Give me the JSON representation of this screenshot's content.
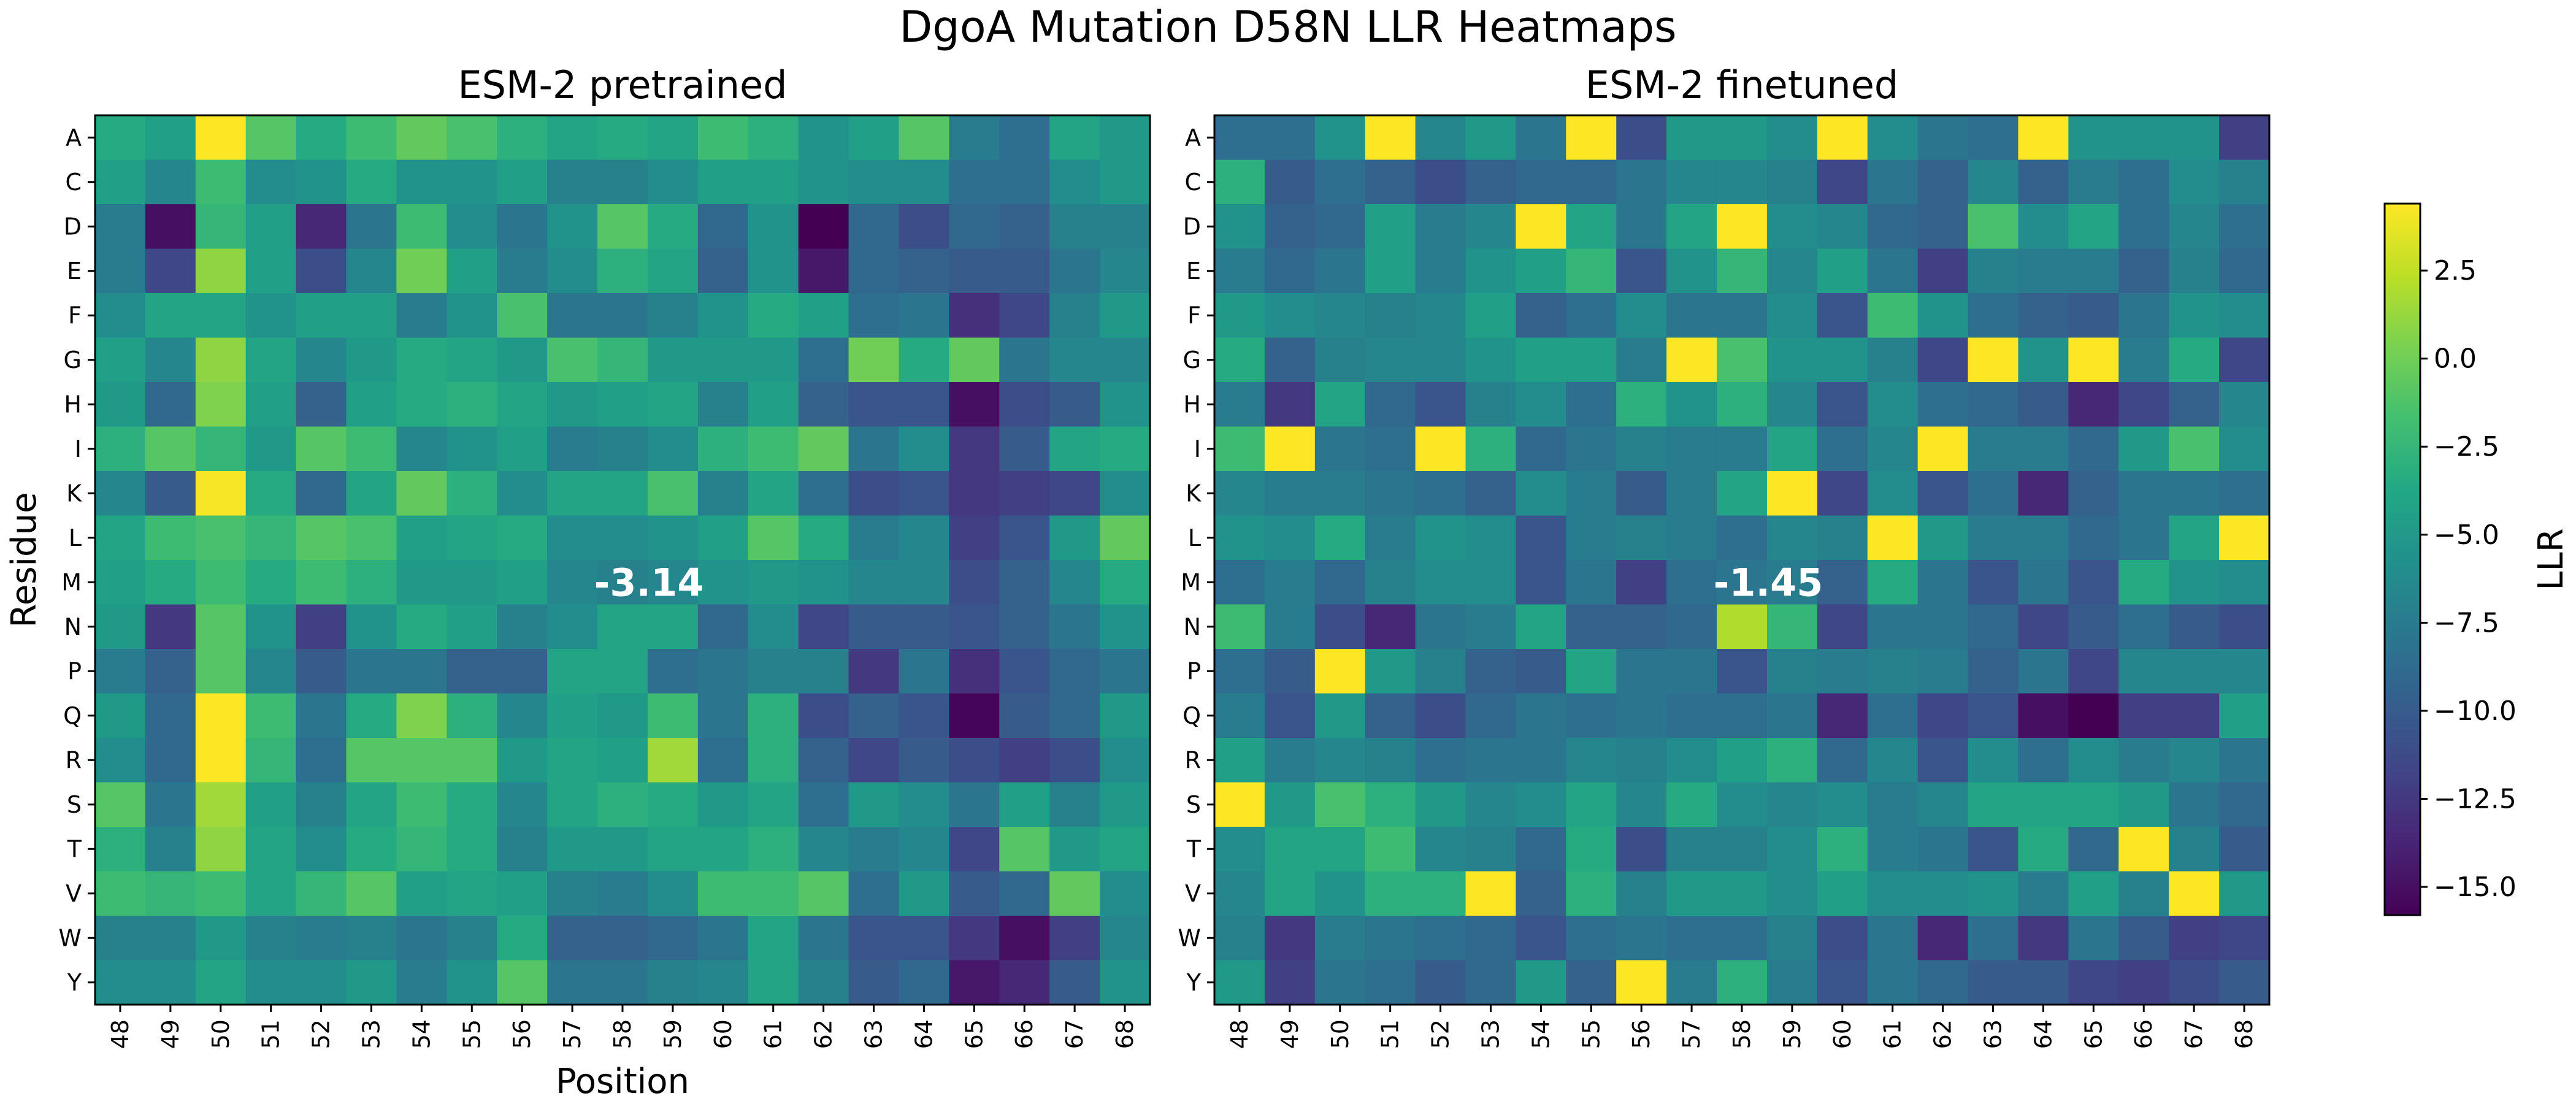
{
  "chart_data": {
    "type": "heatmap",
    "title": "DgoA Mutation D58N LLR Heatmaps",
    "colormap": "viridis",
    "vmin": -15.8,
    "vmax": 4.4,
    "colorbar": {
      "label": "LLR",
      "ticks": [
        2.5,
        0.0,
        -2.5,
        -5.0,
        -7.5,
        -10.0,
        -12.5,
        -15.0
      ],
      "tick_labels": [
        "2.5",
        "0.0",
        "−2.5",
        "−5.0",
        "−7.5",
        "−10.0",
        "−12.5",
        "−15.0"
      ]
    },
    "x_label": "Position",
    "y_label": "Residue",
    "positions": [
      "48",
      "49",
      "50",
      "51",
      "52",
      "53",
      "54",
      "55",
      "56",
      "57",
      "58",
      "59",
      "60",
      "61",
      "62",
      "63",
      "64",
      "65",
      "66",
      "67",
      "68"
    ],
    "residues": [
      "A",
      "C",
      "D",
      "E",
      "F",
      "G",
      "H",
      "I",
      "K",
      "L",
      "M",
      "N",
      "P",
      "Q",
      "R",
      "S",
      "T",
      "V",
      "W",
      "Y"
    ],
    "panels": [
      {
        "title": "ESM-2 pretrained",
        "annotation": "-3.14",
        "values": [
          [
            -3.5,
            -4.5,
            4.4,
            -1.0,
            -3.5,
            -2.0,
            -0.5,
            -1.5,
            -3.0,
            -4.0,
            -3.5,
            -4.0,
            -2.0,
            -3.0,
            -5.5,
            -4.5,
            -1.0,
            -7.5,
            -8.5,
            -4.0,
            -5.0
          ],
          [
            -4.5,
            -6.5,
            -2.0,
            -6.0,
            -5.5,
            -3.5,
            -5.5,
            -5.5,
            -4.5,
            -7.0,
            -7.0,
            -6.0,
            -4.5,
            -4.5,
            -5.5,
            -6.0,
            -6.0,
            -8.5,
            -8.5,
            -6.0,
            -5.0
          ],
          [
            -7.5,
            -15.0,
            -2.5,
            -4.5,
            -13.5,
            -8.0,
            -2.0,
            -6.0,
            -8.0,
            -5.5,
            -1.0,
            -3.5,
            -9.0,
            -5.5,
            -16.0,
            -9.0,
            -11.0,
            -9.0,
            -9.5,
            -7.0,
            -7.0
          ],
          [
            -7.5,
            -11.5,
            1.0,
            -4.5,
            -11.0,
            -6.5,
            0.0,
            -4.5,
            -7.5,
            -6.0,
            -3.0,
            -4.0,
            -9.5,
            -5.5,
            -14.5,
            -9.0,
            -9.5,
            -10.0,
            -10.0,
            -8.0,
            -6.5
          ],
          [
            -6.0,
            -4.0,
            -4.0,
            -5.5,
            -4.5,
            -4.5,
            -7.5,
            -5.5,
            -1.5,
            -8.0,
            -8.0,
            -7.0,
            -5.5,
            -3.5,
            -4.5,
            -8.5,
            -8.0,
            -13.0,
            -11.5,
            -7.0,
            -5.0
          ],
          [
            -4.5,
            -6.5,
            1.0,
            -4.0,
            -6.5,
            -5.0,
            -3.5,
            -4.0,
            -5.0,
            -1.5,
            -2.5,
            -5.0,
            -5.0,
            -5.0,
            -8.5,
            0.0,
            -3.5,
            -0.5,
            -8.0,
            -6.5,
            -6.5
          ],
          [
            -5.0,
            -9.0,
            0.5,
            -4.5,
            -9.5,
            -4.5,
            -3.5,
            -3.0,
            -4.0,
            -5.0,
            -4.5,
            -4.0,
            -7.0,
            -4.5,
            -9.5,
            -10.5,
            -10.5,
            -15.0,
            -11.0,
            -10.0,
            -5.5
          ],
          [
            -3.0,
            -1.0,
            -2.5,
            -5.0,
            -1.0,
            -2.0,
            -6.5,
            -5.5,
            -4.5,
            -7.5,
            -7.0,
            -6.0,
            -3.0,
            -2.0,
            -0.5,
            -8.0,
            -6.0,
            -12.5,
            -10.0,
            -4.0,
            -3.5
          ],
          [
            -6.5,
            -10.0,
            4.2,
            -3.5,
            -9.0,
            -4.0,
            -0.5,
            -3.0,
            -6.0,
            -4.0,
            -4.0,
            -1.5,
            -7.0,
            -4.0,
            -8.5,
            -11.0,
            -10.5,
            -12.5,
            -12.0,
            -11.5,
            -6.0
          ],
          [
            -4.0,
            -2.0,
            -1.5,
            -2.5,
            -1.0,
            -1.5,
            -4.5,
            -4.0,
            -3.5,
            -6.0,
            -6.0,
            -5.5,
            -4.5,
            -1.0,
            -3.5,
            -7.5,
            -6.5,
            -12.0,
            -10.5,
            -5.0,
            -0.5
          ],
          [
            -4.5,
            -3.5,
            -2.0,
            -3.5,
            -2.0,
            -3.0,
            -5.0,
            -5.0,
            -4.5,
            -6.5,
            -7.0,
            -6.5,
            -5.5,
            -5.0,
            -5.5,
            -6.5,
            -6.5,
            -11.0,
            -9.5,
            -6.5,
            -3.5
          ],
          [
            -5.0,
            -12.5,
            -1.0,
            -5.5,
            -12.0,
            -5.5,
            -3.5,
            -4.5,
            -7.0,
            -6.0,
            -4.0,
            -4.0,
            -9.0,
            -6.0,
            -11.5,
            -10.0,
            -10.0,
            -10.5,
            -9.5,
            -8.0,
            -5.5
          ],
          [
            -7.5,
            -9.5,
            -1.0,
            -6.5,
            -10.0,
            -8.0,
            -8.0,
            -9.5,
            -9.5,
            -4.0,
            -4.0,
            -8.5,
            -8.0,
            -7.0,
            -7.0,
            -12.5,
            -8.0,
            -13.0,
            -10.5,
            -9.0,
            -8.0
          ],
          [
            -5.0,
            -9.0,
            4.4,
            -2.0,
            -8.0,
            -3.5,
            0.5,
            -3.0,
            -6.5,
            -4.5,
            -5.0,
            -2.0,
            -8.0,
            -3.0,
            -11.0,
            -9.5,
            -10.5,
            -15.5,
            -10.0,
            -9.0,
            -5.0
          ],
          [
            -6.0,
            -9.0,
            4.4,
            -2.5,
            -8.5,
            -1.0,
            -1.0,
            -1.0,
            -5.0,
            -4.0,
            -4.5,
            1.5,
            -8.5,
            -3.0,
            -9.5,
            -11.5,
            -10.0,
            -11.0,
            -12.0,
            -11.0,
            -6.0
          ],
          [
            -1.0,
            -8.0,
            1.5,
            -4.5,
            -7.0,
            -4.0,
            -2.0,
            -3.5,
            -6.5,
            -4.0,
            -3.0,
            -3.5,
            -5.0,
            -4.0,
            -8.5,
            -5.0,
            -6.0,
            -8.0,
            -4.5,
            -7.0,
            -5.0
          ],
          [
            -3.0,
            -7.0,
            1.0,
            -4.0,
            -6.0,
            -3.5,
            -2.5,
            -3.5,
            -7.0,
            -5.0,
            -5.0,
            -4.0,
            -4.0,
            -3.0,
            -6.5,
            -7.5,
            -6.5,
            -11.5,
            -1.0,
            -5.0,
            -4.0
          ],
          [
            -2.0,
            -2.5,
            -2.0,
            -4.0,
            -2.5,
            -1.0,
            -4.5,
            -4.0,
            -4.5,
            -7.0,
            -7.5,
            -6.0,
            -2.0,
            -2.0,
            -1.0,
            -8.5,
            -5.0,
            -10.0,
            -9.0,
            -0.5,
            -6.0
          ],
          [
            -7.0,
            -7.0,
            -5.0,
            -7.0,
            -7.5,
            -7.0,
            -8.0,
            -7.0,
            -3.5,
            -9.5,
            -9.5,
            -9.0,
            -8.0,
            -4.0,
            -8.0,
            -10.5,
            -10.5,
            -12.5,
            -15.0,
            -12.0,
            -6.5
          ],
          [
            -6.0,
            -6.0,
            -4.0,
            -6.0,
            -6.0,
            -5.0,
            -7.5,
            -5.5,
            -1.0,
            -8.0,
            -8.0,
            -7.0,
            -6.5,
            -4.0,
            -7.0,
            -10.0,
            -9.0,
            -14.5,
            -13.5,
            -10.0,
            -5.5
          ]
        ]
      },
      {
        "title": "ESM-2 finetuned",
        "annotation": "-1.45",
        "values": [
          [
            -8.5,
            -8.5,
            -5.5,
            4.4,
            -6.5,
            -5.0,
            -8.0,
            4.4,
            -11.0,
            -5.0,
            -5.0,
            -6.0,
            4.4,
            -6.0,
            -8.0,
            -8.5,
            4.4,
            -5.5,
            -5.5,
            -5.5,
            -12.0
          ],
          [
            -3.0,
            -10.0,
            -8.5,
            -9.5,
            -11.0,
            -9.5,
            -9.0,
            -9.0,
            -8.0,
            -6.5,
            -6.5,
            -7.0,
            -11.5,
            -8.0,
            -9.5,
            -6.5,
            -9.5,
            -7.5,
            -8.5,
            -6.0,
            -7.0
          ],
          [
            -5.5,
            -9.5,
            -9.0,
            -4.5,
            -7.5,
            -6.5,
            4.4,
            -4.0,
            -8.0,
            -4.0,
            4.4,
            -6.0,
            -6.5,
            -9.0,
            -9.5,
            -1.5,
            -6.0,
            -4.0,
            -8.5,
            -6.5,
            -8.5
          ],
          [
            -7.5,
            -9.0,
            -8.0,
            -4.5,
            -7.5,
            -5.5,
            -4.5,
            -2.5,
            -10.5,
            -5.5,
            -2.5,
            -6.5,
            -4.5,
            -8.0,
            -12.0,
            -7.0,
            -7.5,
            -7.5,
            -9.5,
            -7.0,
            -9.0
          ],
          [
            -5.0,
            -6.0,
            -6.5,
            -7.0,
            -6.5,
            -4.5,
            -9.5,
            -8.5,
            -6.0,
            -8.0,
            -8.0,
            -6.0,
            -10.5,
            -2.0,
            -5.5,
            -8.5,
            -9.5,
            -10.0,
            -8.0,
            -5.5,
            -6.0
          ],
          [
            -3.5,
            -9.5,
            -7.0,
            -6.5,
            -6.5,
            -5.5,
            -4.5,
            -4.5,
            -7.5,
            4.4,
            -1.5,
            -5.5,
            -5.5,
            -7.0,
            -11.5,
            4.4,
            -5.5,
            4.4,
            -7.5,
            -3.5,
            -11.5
          ],
          [
            -7.5,
            -12.5,
            -4.0,
            -9.0,
            -10.5,
            -7.0,
            -6.0,
            -8.5,
            -3.0,
            -5.5,
            -3.0,
            -6.5,
            -10.5,
            -6.0,
            -8.5,
            -9.0,
            -10.0,
            -13.5,
            -11.5,
            -9.5,
            -6.5
          ],
          [
            -2.0,
            4.4,
            -8.0,
            -8.5,
            4.4,
            -3.0,
            -9.0,
            -8.0,
            -7.0,
            -7.5,
            -7.5,
            -4.0,
            -8.5,
            -6.5,
            4.4,
            -7.5,
            -7.5,
            -9.0,
            -5.0,
            -1.5,
            -6.0
          ],
          [
            -6.5,
            -7.5,
            -7.5,
            -8.0,
            -8.5,
            -9.5,
            -6.0,
            -7.5,
            -10.0,
            -7.5,
            -4.0,
            4.4,
            -11.5,
            -6.0,
            -10.5,
            -8.5,
            -13.5,
            -9.5,
            -8.0,
            -8.0,
            -8.5
          ],
          [
            -5.5,
            -6.0,
            -3.5,
            -7.5,
            -5.5,
            -6.0,
            -10.5,
            -7.5,
            -7.0,
            -7.5,
            -8.5,
            -6.5,
            -7.0,
            4.4,
            -5.0,
            -7.5,
            -7.5,
            -9.0,
            -8.0,
            -4.0,
            4.4
          ],
          [
            -8.5,
            -7.5,
            -9.0,
            -7.0,
            -6.0,
            -6.0,
            -10.5,
            -8.0,
            -12.0,
            -8.5,
            -8.0,
            -7.5,
            -9.5,
            -3.5,
            -8.0,
            -10.5,
            -8.0,
            -10.5,
            -3.5,
            -5.5,
            -6.0
          ],
          [
            -2.0,
            -7.5,
            -11.0,
            -13.5,
            -8.0,
            -7.5,
            -4.0,
            -9.5,
            -9.5,
            -9.0,
            2.0,
            -2.5,
            -11.5,
            -8.0,
            -8.0,
            -9.0,
            -11.5,
            -10.0,
            -8.5,
            -10.0,
            -11.0
          ],
          [
            -8.5,
            -10.0,
            4.4,
            -5.0,
            -7.0,
            -9.5,
            -10.0,
            -4.0,
            -8.0,
            -8.0,
            -10.5,
            -7.0,
            -7.5,
            -7.0,
            -7.5,
            -9.5,
            -8.0,
            -11.5,
            -6.5,
            -6.5,
            -6.5
          ],
          [
            -7.5,
            -10.5,
            -5.0,
            -9.5,
            -11.0,
            -9.0,
            -8.0,
            -8.5,
            -8.0,
            -8.5,
            -8.5,
            -8.0,
            -13.5,
            -8.5,
            -11.5,
            -10.5,
            -15.0,
            -15.8,
            -12.0,
            -12.0,
            -4.5
          ],
          [
            -4.5,
            -7.5,
            -6.5,
            -7.0,
            -8.5,
            -8.0,
            -8.0,
            -6.5,
            -7.0,
            -6.0,
            -4.5,
            -3.0,
            -9.0,
            -6.5,
            -10.5,
            -6.0,
            -8.5,
            -6.0,
            -7.5,
            -6.5,
            -8.0
          ],
          [
            4.4,
            -5.0,
            -1.5,
            -3.0,
            -5.0,
            -6.5,
            -6.0,
            -4.0,
            -6.5,
            -3.5,
            -6.0,
            -6.5,
            -6.0,
            -7.5,
            -6.5,
            -4.0,
            -4.0,
            -4.0,
            -5.0,
            -8.0,
            -9.0
          ],
          [
            -6.0,
            -4.0,
            -4.0,
            -2.0,
            -6.5,
            -7.0,
            -9.0,
            -3.5,
            -11.0,
            -7.0,
            -7.0,
            -6.0,
            -3.0,
            -7.5,
            -8.0,
            -10.5,
            -3.5,
            -9.0,
            4.4,
            -7.0,
            -10.0
          ],
          [
            -6.5,
            -4.0,
            -5.5,
            -3.0,
            -3.0,
            4.4,
            -9.5,
            -3.0,
            -7.0,
            -5.0,
            -5.0,
            -6.0,
            -4.5,
            -6.0,
            -6.0,
            -5.5,
            -7.5,
            -4.5,
            -7.0,
            4.4,
            -5.0
          ],
          [
            -7.0,
            -12.5,
            -7.5,
            -8.0,
            -8.5,
            -9.0,
            -10.5,
            -8.5,
            -8.0,
            -8.5,
            -8.5,
            -7.0,
            -11.0,
            -8.0,
            -13.5,
            -8.5,
            -12.5,
            -8.0,
            -10.0,
            -12.0,
            -11.5
          ],
          [
            -5.0,
            -12.0,
            -8.0,
            -8.5,
            -10.0,
            -9.0,
            -5.0,
            -9.5,
            4.4,
            -7.5,
            -3.0,
            -7.5,
            -10.5,
            -8.0,
            -9.0,
            -10.0,
            -10.0,
            -11.5,
            -12.0,
            -11.0,
            -10.0
          ]
        ]
      }
    ]
  }
}
